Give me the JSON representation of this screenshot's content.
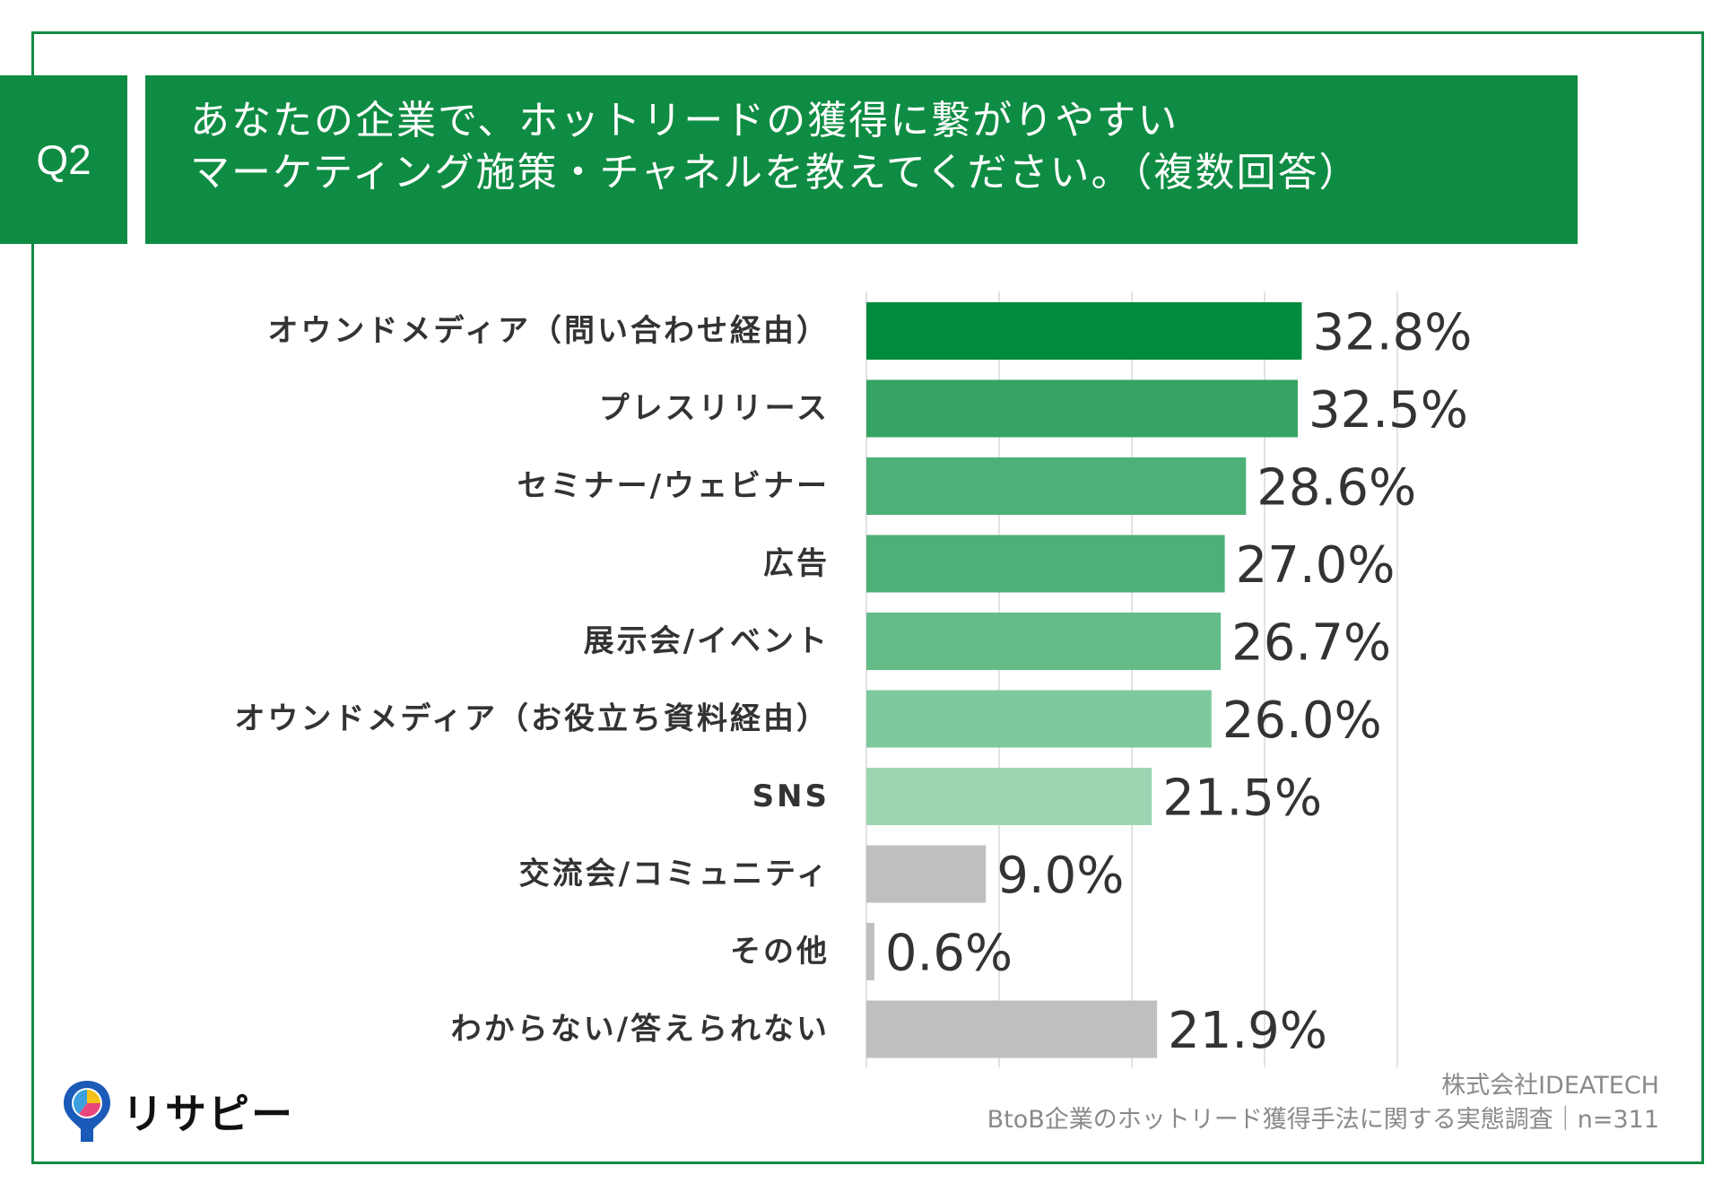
{
  "header": {
    "q_label": "Q2",
    "title_lines": [
      "あなたの企業で、ホットリードの獲得に繋がりやすい",
      "マーケティング施策・チャネルを教えてください。（複数回答）"
    ]
  },
  "chart_data": {
    "type": "bar",
    "orientation": "horizontal",
    "categories": [
      "オウンドメディア（問い合わせ経由）",
      "プレスリリース",
      "セミナー/ウェビナー",
      "広告",
      "展示会/イベント",
      "オウンドメディア（お役立ち資料経由）",
      "SNS",
      "交流会/コミュニティ",
      "その他",
      "わからない/答えられない"
    ],
    "values": [
      32.8,
      32.5,
      28.6,
      27.0,
      26.7,
      26.0,
      21.5,
      9.0,
      0.6,
      21.9
    ],
    "value_labels": [
      "32.8%",
      "32.5%",
      "28.6%",
      "27.0%",
      "26.7%",
      "26.0%",
      "21.5%",
      "9.0%",
      "0.6%",
      "21.9%"
    ],
    "bar_colors": [
      "#008c3c",
      "#36a463",
      "#4cb077",
      "#4cb077",
      "#63bb88",
      "#7ec89d",
      "#9dd5b3",
      "#bfbfbf",
      "#bfbfbf",
      "#bfbfbf"
    ],
    "xlim": [
      0,
      40
    ],
    "grid": true
  },
  "footer": {
    "company": "株式会社IDEATECH",
    "source": "BtoB企業のホットリード獲得手法に関する実態調査｜n=311"
  },
  "brand": {
    "logo_text": "リサピー"
  },
  "colors": {
    "accent": "#0f8c43",
    "frame": "#128a45"
  }
}
